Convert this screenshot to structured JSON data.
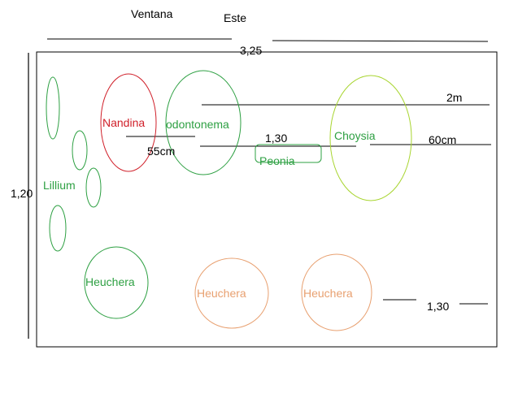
{
  "labels": {
    "window": "Ventana",
    "east": "Este",
    "width_total": "3,25",
    "height_total": "1,20",
    "two_m": "2m",
    "sixty_cm": "60cm",
    "one_thirty_top": "1,30",
    "fifty_five_cm": "55cm",
    "one_thirty_bottom": "1,30"
  },
  "plants": {
    "nandina": "Nandina",
    "odontonema": "odontonema",
    "peonia": "Peonia",
    "choysia": "Choysia",
    "lillium": "Lillium",
    "heuchera_green": "Heuchera",
    "heuchera_orange_1": "Heuchera",
    "heuchera_orange_2": "Heuchera"
  },
  "colors": {
    "line": "#000000",
    "green": "#2ea043",
    "red": "#d0202a",
    "yellow_green": "#a8d530",
    "orange": "#e8a070"
  }
}
